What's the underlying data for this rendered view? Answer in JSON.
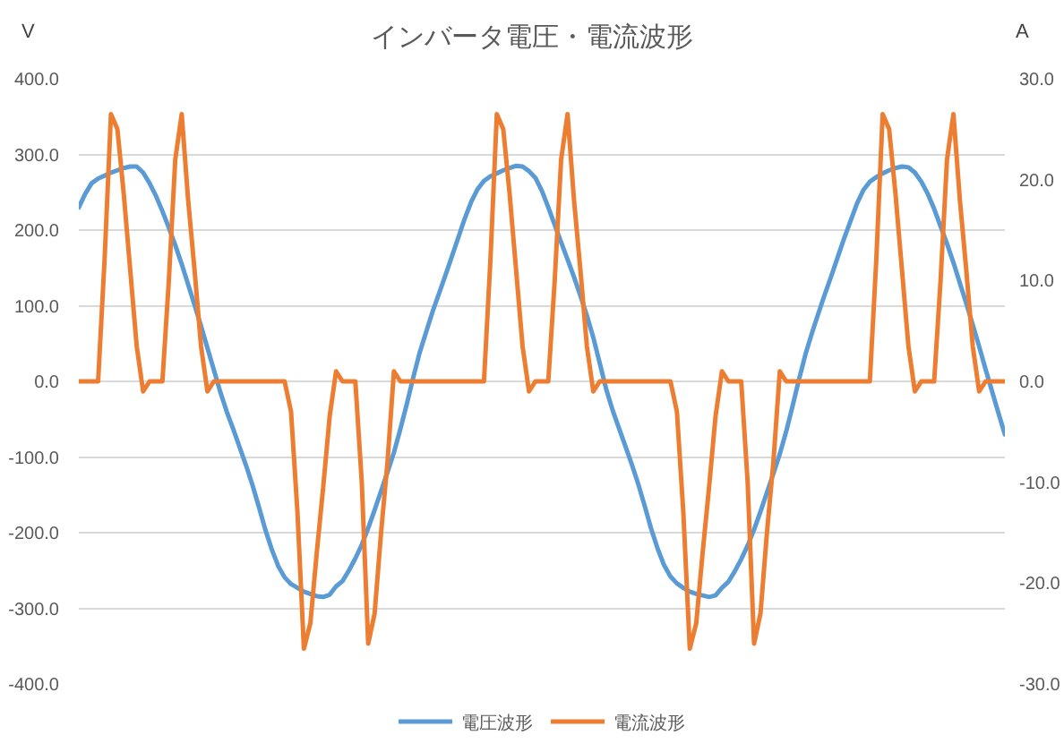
{
  "chart_data": {
    "type": "line",
    "title": "インバータ電圧・電流波形",
    "ylabel": "V",
    "y2label": "A",
    "categories": [
      null,
      null,
      null,
      null,
      null,
      null,
      null,
      null,
      null,
      null,
      null,
      null,
      null,
      null,
      null,
      null,
      null,
      null,
      null,
      null,
      null,
      null,
      null,
      null,
      null,
      null,
      null,
      null,
      null,
      null,
      null,
      null,
      null,
      null,
      null,
      null,
      null,
      null,
      null,
      null,
      null,
      null,
      null,
      null,
      null,
      null,
      null,
      null,
      null,
      null,
      null,
      null,
      null,
      null,
      null,
      null,
      null,
      null,
      null,
      null,
      null,
      null,
      null,
      null,
      null,
      null,
      null,
      null,
      null,
      null,
      null,
      null,
      null,
      null,
      null,
      null,
      null,
      null,
      null,
      null,
      null,
      null,
      null,
      null,
      null,
      null,
      null,
      null,
      null,
      null,
      null,
      null,
      null,
      null,
      null,
      null,
      null,
      null,
      null,
      null,
      null,
      null,
      null,
      null,
      null,
      null,
      null,
      null,
      null,
      null,
      null,
      null,
      null,
      null,
      null,
      null,
      null,
      null,
      null,
      null,
      null,
      null,
      null,
      null,
      null,
      null,
      null,
      null,
      null,
      null,
      null,
      null,
      null,
      null,
      null,
      null,
      null,
      null,
      null,
      null,
      null,
      null,
      null,
      null,
      null
    ],
    "series": [
      {
        "name": "電圧波形",
        "color": "#5b9bd5",
        "values": [
          230,
          248,
          262,
          268,
          272,
          276,
          279,
          282,
          284,
          284,
          276,
          262,
          245,
          225,
          203,
          180,
          155,
          128,
          101,
          73,
          44,
          15,
          -14,
          -40,
          -63,
          -87,
          -111,
          -137,
          -166,
          -196,
          -222,
          -244,
          -259,
          -268,
          -273,
          -278,
          -281,
          -284,
          -285,
          -282,
          -271,
          -264,
          -250,
          -234,
          -216,
          -194,
          -170,
          -145,
          -120,
          -94,
          -63,
          -30,
          5,
          38,
          65,
          92,
          116,
          140,
          165,
          190,
          215,
          237,
          254,
          265,
          271,
          275,
          279,
          282,
          285,
          284,
          278,
          269,
          252,
          230,
          207,
          184,
          161,
          138,
          113,
          87,
          58,
          24,
          -10,
          -38,
          -62,
          -86,
          -110,
          -136,
          -165,
          -195,
          -221,
          -243,
          -258,
          -267,
          -273,
          -278,
          -281,
          -283,
          -285,
          -283,
          -273,
          -265,
          -251,
          -235,
          -217,
          -196,
          -172,
          -147,
          -122,
          -96,
          -66,
          -32,
          3,
          36,
          64,
          90,
          115,
          139,
          164,
          189,
          212,
          235,
          253,
          264,
          270,
          275,
          279,
          282,
          284,
          283,
          276,
          264,
          248,
          228,
          205,
          182,
          157,
          130,
          103,
          75,
          46,
          16,
          -13,
          -42,
          -70
        ]
      },
      {
        "name": "電流波形",
        "color": "#ed7d31",
        "axis": "y2",
        "values": [
          0,
          0,
          0,
          0,
          12,
          26.5,
          25,
          18.5,
          11,
          3.5,
          -1,
          0,
          0,
          0,
          10,
          22,
          26.5,
          18,
          11,
          3.5,
          -1,
          0,
          0,
          0,
          0,
          0,
          0,
          0,
          0,
          0,
          0,
          0,
          0,
          -3,
          -13,
          -26.5,
          -24,
          -17,
          -10.5,
          -3.5,
          1,
          0,
          0,
          0,
          -10,
          -26,
          -23,
          -15,
          -8,
          1,
          0,
          0,
          0,
          0,
          0,
          0,
          0,
          0,
          0,
          0,
          0,
          0,
          0,
          0,
          12,
          26.5,
          25,
          18.5,
          11,
          3.5,
          -1,
          0,
          0,
          0,
          10,
          22,
          26.5,
          18,
          11,
          3.5,
          -1,
          0,
          0,
          0,
          0,
          0,
          0,
          0,
          0,
          0,
          0,
          0,
          0,
          -3,
          -13,
          -26.5,
          -24,
          -17,
          -10.5,
          -3.5,
          1,
          0,
          0,
          0,
          -10,
          -26,
          -23,
          -15,
          -8,
          1,
          0,
          0,
          0,
          0,
          0,
          0,
          0,
          0,
          0,
          0,
          0,
          0,
          0,
          0,
          12,
          26.5,
          25,
          18.5,
          11,
          3.5,
          -1,
          0,
          0,
          0,
          10,
          22,
          26.5,
          18,
          11,
          3.5,
          -1,
          0,
          0,
          0,
          0
        ]
      }
    ],
    "ylim": [
      -400,
      400
    ],
    "yticks": [
      {
        "value": -400,
        "label": "-400.0"
      },
      {
        "value": -300,
        "label": "-300.0"
      },
      {
        "value": -200,
        "label": "-200.0"
      },
      {
        "value": -100,
        "label": "-100.0"
      },
      {
        "value": 0,
        "label": "0.0"
      },
      {
        "value": 100,
        "label": "100.0"
      },
      {
        "value": 200,
        "label": "200.0"
      },
      {
        "value": 300,
        "label": "300.0"
      },
      {
        "value": 400,
        "label": "400.0"
      }
    ],
    "y2lim": [
      -30,
      30
    ],
    "y2ticks": [
      {
        "value": -30,
        "label": "-30.0"
      },
      {
        "value": -20,
        "label": "-20.0"
      },
      {
        "value": -10,
        "label": "-10.0"
      },
      {
        "value": 0,
        "label": "0.0"
      },
      {
        "value": 10,
        "label": "10.0"
      },
      {
        "value": 20,
        "label": "20.0"
      },
      {
        "value": 30,
        "label": "30.0"
      }
    ],
    "grid": "y",
    "legend": "bottom",
    "tick_labels": "y"
  }
}
